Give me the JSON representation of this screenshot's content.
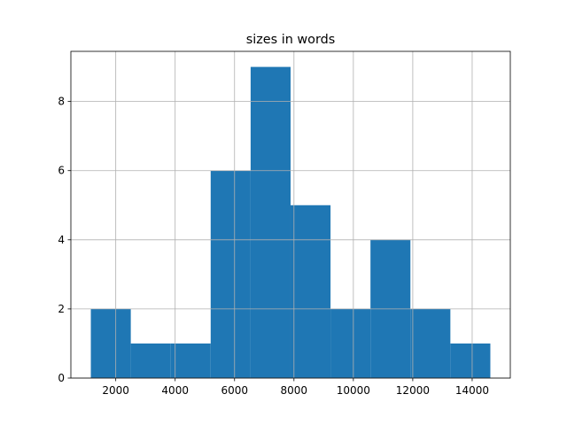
{
  "chart_data": {
    "type": "histogram",
    "title": "sizes in words",
    "bins": [
      1161,
      2506,
      3851,
      5196,
      6541,
      7886,
      9231,
      10576,
      11921,
      13266,
      14612
    ],
    "values": [
      2,
      1,
      1,
      6,
      9,
      5,
      2,
      4,
      2,
      1
    ],
    "color": "#1f77b4",
    "xlim": [
      489,
      15284
    ],
    "xticks": [
      2000,
      4000,
      6000,
      8000,
      10000,
      12000,
      14000
    ],
    "ylim": [
      0,
      9.45
    ],
    "yticks": [
      0,
      2,
      4,
      6,
      8
    ],
    "grid": true
  }
}
